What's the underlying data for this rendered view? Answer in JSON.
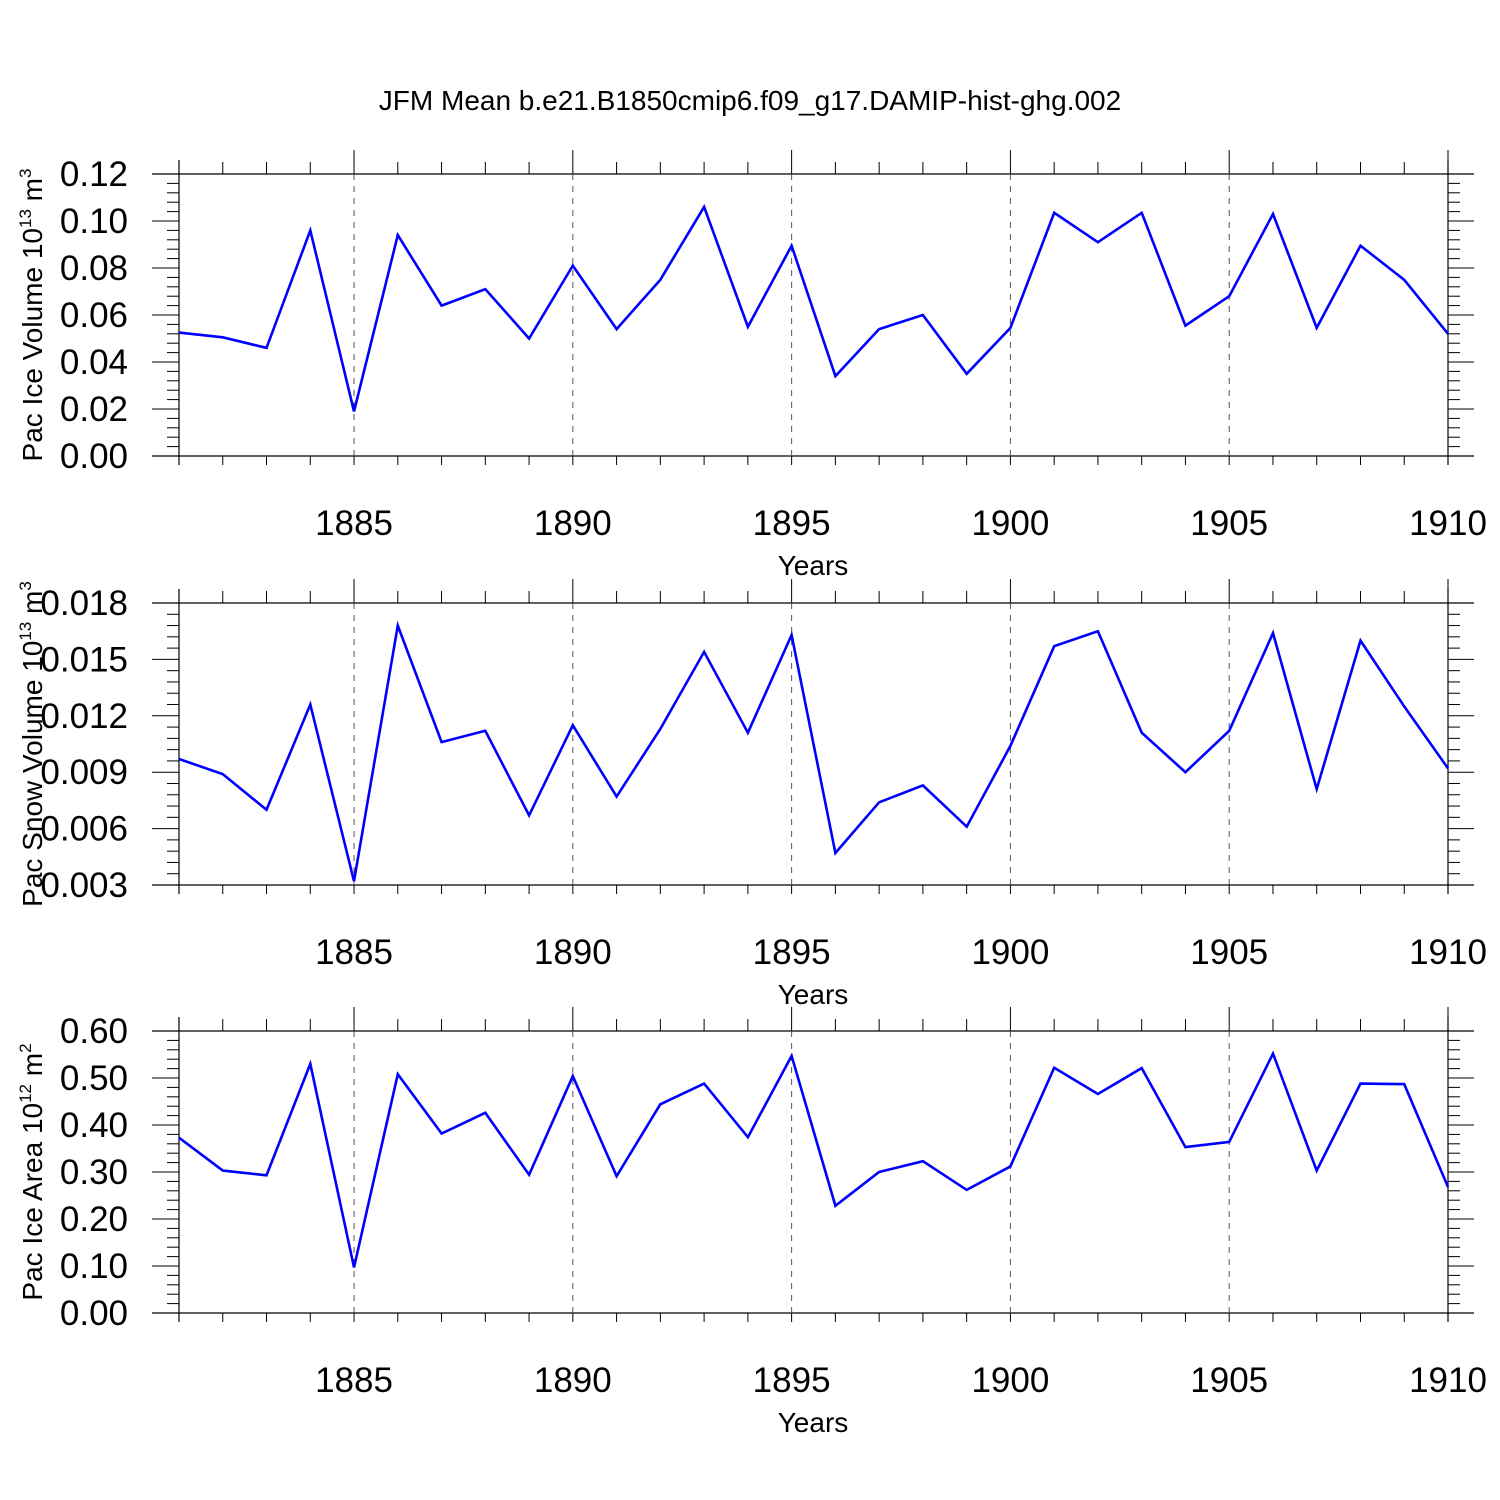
{
  "title": "JFM Mean b.e21.B1850cmip6.f09_g17.DAMIP-hist-ghg.002",
  "colors": {
    "line": "#0000ff",
    "axis": "#000000",
    "grid": "#555555"
  },
  "chart_data": [
    {
      "type": "line",
      "name": "ice-volume",
      "ylabel": {
        "main": "Pac Ice Volume 10",
        "exp": "13",
        "unit": " m",
        "unit_exp": "3"
      },
      "xlabel": "Years",
      "xlim": [
        1881,
        1910
      ],
      "ylim": [
        0,
        0.12
      ],
      "yticks": [
        "0.00",
        "0.02",
        "0.04",
        "0.06",
        "0.08",
        "0.10",
        "0.12"
      ],
      "xticks": [
        "1885",
        "1890",
        "1895",
        "1900",
        "1905",
        "1910"
      ],
      "x": [
        1881,
        1882,
        1883,
        1884,
        1885,
        1886,
        1887,
        1888,
        1889,
        1890,
        1891,
        1892,
        1893,
        1894,
        1895,
        1896,
        1897,
        1898,
        1899,
        1900,
        1901,
        1902,
        1903,
        1904,
        1905,
        1906,
        1907,
        1908,
        1909,
        1910
      ],
      "values": [
        0.0525,
        0.0505,
        0.046,
        0.096,
        0.019,
        0.094,
        0.064,
        0.071,
        0.05,
        0.081,
        0.054,
        0.075,
        0.106,
        0.055,
        0.0895,
        0.034,
        0.054,
        0.06,
        0.035,
        0.0545,
        0.1035,
        0.091,
        0.1035,
        0.0555,
        0.068,
        0.103,
        0.0545,
        0.0895,
        0.075,
        0.052
      ]
    },
    {
      "type": "line",
      "name": "snow-volume",
      "ylabel": {
        "main": "Pac Snow Volume 10",
        "exp": "13",
        "unit": " m",
        "unit_exp": "3"
      },
      "xlabel": "Years",
      "xlim": [
        1881,
        1910
      ],
      "ylim": [
        0.003,
        0.018
      ],
      "yticks": [
        "0.003",
        "0.006",
        "0.009",
        "0.012",
        "0.015",
        "0.018"
      ],
      "xticks": [
        "1885",
        "1890",
        "1895",
        "1900",
        "1905",
        "1910"
      ],
      "x": [
        1881,
        1882,
        1883,
        1884,
        1885,
        1886,
        1887,
        1888,
        1889,
        1890,
        1891,
        1892,
        1893,
        1894,
        1895,
        1896,
        1897,
        1898,
        1899,
        1900,
        1901,
        1902,
        1903,
        1904,
        1905,
        1906,
        1907,
        1908,
        1909,
        1910
      ],
      "values": [
        0.0097,
        0.0089,
        0.007,
        0.0126,
        0.0032,
        0.0168,
        0.0106,
        0.0112,
        0.0067,
        0.0115,
        0.0077,
        0.0113,
        0.0154,
        0.0111,
        0.0163,
        0.0047,
        0.0074,
        0.0083,
        0.0061,
        0.0104,
        0.0157,
        0.0165,
        0.0111,
        0.009,
        0.0112,
        0.0164,
        0.0081,
        0.016,
        0.0125,
        0.0092
      ]
    },
    {
      "type": "line",
      "name": "ice-area",
      "ylabel": {
        "main": "Pac Ice Area 10",
        "exp": "12",
        "unit": " m",
        "unit_exp": "2"
      },
      "xlabel": "Years",
      "xlim": [
        1881,
        1910
      ],
      "ylim": [
        0,
        0.6
      ],
      "yticks": [
        "0.00",
        "0.10",
        "0.20",
        "0.30",
        "0.40",
        "0.50",
        "0.60"
      ],
      "xticks": [
        "1885",
        "1890",
        "1895",
        "1900",
        "1905",
        "1910"
      ],
      "x": [
        1881,
        1882,
        1883,
        1884,
        1885,
        1886,
        1887,
        1888,
        1889,
        1890,
        1891,
        1892,
        1893,
        1894,
        1895,
        1896,
        1897,
        1898,
        1899,
        1900,
        1901,
        1902,
        1903,
        1904,
        1905,
        1906,
        1907,
        1908,
        1909,
        1910
      ],
      "values": [
        0.373,
        0.303,
        0.293,
        0.53,
        0.097,
        0.508,
        0.382,
        0.426,
        0.294,
        0.504,
        0.291,
        0.444,
        0.488,
        0.374,
        0.547,
        0.228,
        0.3,
        0.323,
        0.262,
        0.312,
        0.522,
        0.466,
        0.521,
        0.353,
        0.364,
        0.552,
        0.303,
        0.488,
        0.487,
        0.268
      ]
    }
  ]
}
